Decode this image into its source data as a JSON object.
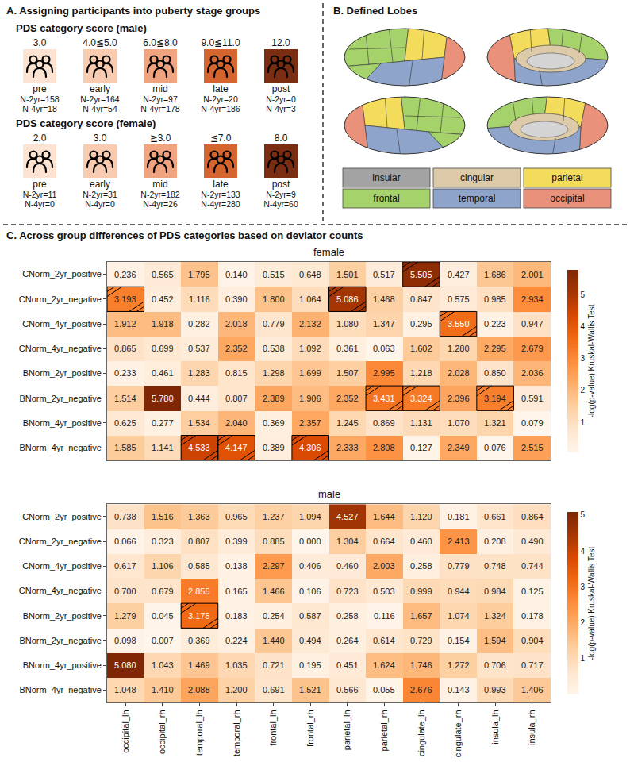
{
  "panels": {
    "A": {
      "title": "A. Assigning participants into puberty stage groups",
      "groups": [
        {
          "heading": "PDS category score (male)",
          "stages": [
            {
              "score": "3.0",
              "label": "pre",
              "counts": [
                "N-2yr=158",
                "N-4yr=18"
              ],
              "color": "#fde4d2"
            },
            {
              "score": "4.0≦5.0",
              "label": "early",
              "counts": [
                "N-2yr=164",
                "N-4yr=54"
              ],
              "color": "#f9cbb0"
            },
            {
              "score": "6.0≦8.0",
              "label": "mid",
              "counts": [
                "N-2yr=97",
                "N-4yr=178"
              ],
              "color": "#f0a37f"
            },
            {
              "score": "9.0≦11.0",
              "label": "late",
              "counts": [
                "N-2yr=20",
                "N-4yr=186"
              ],
              "color": "#d5652e"
            },
            {
              "score": "12.0",
              "label": "post",
              "counts": [
                "N-2yr=0",
                "N-4yr=3"
              ],
              "color": "#7a2d10"
            }
          ]
        },
        {
          "heading": "PDS category score (female)",
          "stages": [
            {
              "score": "2.0",
              "label": "pre",
              "counts": [
                "N-2yr=11",
                "N-4yr=0"
              ],
              "color": "#fde4d2"
            },
            {
              "score": "3.0",
              "label": "early",
              "counts": [
                "N-2yr=31",
                "N-4yr=0"
              ],
              "color": "#f9cbb0"
            },
            {
              "score": "≧3.0",
              "label": "mid",
              "counts": [
                "N-2yr=182",
                "N-4yr=26"
              ],
              "color": "#f0a37f"
            },
            {
              "score": "≦7.0",
              "label": "late",
              "counts": [
                "N-2yr=133",
                "N-4yr=280"
              ],
              "color": "#d5652e"
            },
            {
              "score": "8.0",
              "label": "post",
              "counts": [
                "N-2yr=9",
                "N-4yr=60"
              ],
              "color": "#7a2d10"
            }
          ]
        }
      ]
    },
    "B": {
      "title": "B. Defined Lobes",
      "lobes": [
        {
          "name": "insular",
          "color": "#a3a3a3"
        },
        {
          "name": "cingular",
          "color": "#dccaa8"
        },
        {
          "name": "parietal",
          "color": "#f3dc5c"
        },
        {
          "name": "frontal",
          "color": "#a6d26b"
        },
        {
          "name": "temporal",
          "color": "#8fa4cb"
        },
        {
          "name": "occipital",
          "color": "#e9917b"
        }
      ]
    },
    "C": {
      "title": "C. Across group differences of PDS categories based on deviator counts"
    }
  },
  "chart_data": [
    {
      "type": "heatmap",
      "title": "female",
      "x": [
        "occipital_lh",
        "occipital_rh",
        "temporal_lh",
        "temporal_rh",
        "frontal_lh",
        "frontal_rh",
        "parietal_lh",
        "parietal_rh",
        "cingulate_lh",
        "cingulate_rh",
        "insula_lh",
        "insula_rh"
      ],
      "y": [
        "CNorm_2yr_positive",
        "CNorm_2yr_negative",
        "CNorm_4yr_positive",
        "CNorm_4yr_negative",
        "BNorm_2yr_positive",
        "BNorm_2yr_negative",
        "BNorm_4yr_positive",
        "BNorm_4yr_negative"
      ],
      "cells": [
        [
          0.236,
          0.565,
          1.795,
          0.14,
          0.515,
          0.648,
          1.501,
          0.517,
          5.505,
          0.427,
          1.686,
          2.001
        ],
        [
          3.193,
          0.452,
          1.116,
          0.39,
          1.8,
          1.064,
          5.086,
          1.468,
          0.847,
          0.575,
          0.985,
          2.934
        ],
        [
          1.912,
          1.918,
          0.282,
          2.018,
          0.779,
          2.132,
          1.08,
          1.347,
          0.295,
          3.55,
          0.223,
          0.947
        ],
        [
          0.865,
          0.699,
          0.537,
          2.352,
          0.538,
          1.092,
          0.361,
          0.063,
          1.602,
          1.28,
          2.295,
          2.679
        ],
        [
          0.233,
          0.461,
          1.283,
          0.815,
          1.298,
          1.699,
          1.507,
          2.995,
          1.218,
          2.028,
          0.85,
          2.036
        ],
        [
          1.514,
          5.78,
          0.444,
          0.807,
          2.389,
          1.906,
          2.352,
          3.431,
          3.324,
          2.396,
          3.194,
          0.591
        ],
        [
          0.625,
          0.277,
          1.534,
          2.04,
          0.369,
          2.357,
          1.245,
          0.869,
          1.131,
          1.07,
          1.321,
          0.079
        ],
        [
          1.585,
          1.141,
          4.533,
          4.147,
          0.389,
          4.306,
          2.333,
          2.808,
          0.127,
          2.349,
          0.076,
          2.515
        ]
      ],
      "cell_labels": [
        [
          "0.236",
          "0.565",
          "1.795",
          "0.140",
          "0.515",
          "0.648",
          "1.501",
          "0.517",
          "5.505",
          "0.427",
          "1.686",
          "2.001"
        ],
        [
          "3.193",
          "0.452",
          "1.116",
          "0.390",
          "1.800",
          "1.064",
          "5.086",
          "1.468",
          "0.847",
          "0.575",
          "0.985",
          "2.934"
        ],
        [
          "1.912",
          "1.918",
          "0.282",
          "2.018",
          "0.779",
          "2.132",
          "1.080",
          "1.347",
          "0.295",
          "3.550",
          "0.223",
          "0.947"
        ],
        [
          "0.865",
          "0.699",
          "0.537",
          "2.352",
          "0.538",
          "1.092",
          "0.361",
          "0.063",
          "1.602",
          "1.280",
          "2.295",
          "2.679"
        ],
        [
          "0.233",
          "0.461",
          "1.283",
          "0.815",
          "1.298",
          "1.699",
          "1.507",
          "2.995",
          "1.218",
          "2.028",
          "0.850",
          "2.036"
        ],
        [
          "1.514",
          "5.780",
          "0.444",
          "0.807",
          "2.389",
          "1.906",
          "2.352",
          "3.431",
          "3.324",
          "2.396",
          "3.194",
          "0.591"
        ],
        [
          "0.625",
          "0.277",
          "1.534",
          "2.040",
          "0.369",
          "2.357",
          "1.245",
          "0.869",
          "1.131",
          "1.070",
          "1.321",
          "0.079"
        ],
        [
          "1.585",
          "1.141",
          "4.533",
          "4.147",
          "0.389",
          "4.306",
          "2.333",
          "2.808",
          "0.127",
          "2.349",
          "0.076",
          "2.515"
        ]
      ],
      "hatched_cells": [
        [
          0,
          8
        ],
        [
          1,
          0
        ],
        [
          1,
          6
        ],
        [
          2,
          9
        ],
        [
          5,
          7
        ],
        [
          5,
          8
        ],
        [
          5,
          10
        ],
        [
          7,
          2
        ],
        [
          7,
          3
        ],
        [
          7,
          5
        ]
      ],
      "colorbar": {
        "title": "-log(p-value) Kruskal-Wallis Test",
        "range": [
          0.063,
          5.78
        ],
        "ticks": [
          1,
          2,
          3,
          4,
          5
        ]
      },
      "data_labels": true,
      "tick_labels": "y"
    },
    {
      "type": "heatmap",
      "title": "male",
      "x": [
        "occipital_lh",
        "occipital_rh",
        "temporal_lh",
        "temporal_rh",
        "frontal_lh",
        "frontal_rh",
        "parietal_lh",
        "parietal_rh",
        "cingulate_lh",
        "cingulate_rh",
        "insula_lh",
        "insula_rh"
      ],
      "y": [
        "CNorm_2yr_positive",
        "CNorm_2yr_negative",
        "CNorm_4yr_positive",
        "CNorm_4yr_negative",
        "BNorm_2yr_positive",
        "BNorm_2yr_negative",
        "BNorm_4yr_positive",
        "BNorm_4yr_negative"
      ],
      "cells": [
        [
          0.738,
          1.516,
          1.363,
          0.965,
          1.237,
          1.094,
          4.527,
          1.644,
          1.12,
          0.181,
          0.661,
          0.864
        ],
        [
          0.066,
          0.323,
          0.807,
          0.399,
          0.885,
          0.0,
          1.304,
          0.664,
          0.46,
          2.413,
          0.208,
          0.49
        ],
        [
          0.617,
          1.106,
          0.585,
          0.138,
          2.297,
          0.406,
          0.46,
          2.003,
          0.258,
          0.779,
          0.748,
          0.744
        ],
        [
          0.7,
          0.679,
          2.855,
          0.165,
          1.466,
          0.106,
          0.723,
          0.503,
          0.999,
          0.944,
          0.984,
          0.125
        ],
        [
          1.279,
          0.045,
          3.175,
          0.183,
          0.254,
          0.587,
          0.258,
          0.116,
          1.657,
          1.074,
          1.324,
          0.178
        ],
        [
          0.098,
          0.007,
          0.369,
          0.224,
          1.44,
          0.494,
          0.264,
          0.614,
          0.729,
          0.154,
          1.594,
          0.904
        ],
        [
          5.08,
          1.043,
          1.469,
          1.035,
          0.721,
          0.195,
          0.451,
          1.624,
          1.746,
          1.272,
          0.706,
          0.717
        ],
        [
          1.048,
          1.41,
          2.088,
          1.2,
          0.691,
          1.521,
          0.566,
          0.055,
          2.676,
          0.143,
          0.993,
          1.406
        ]
      ],
      "cell_labels": [
        [
          "0.738",
          "1.516",
          "1.363",
          "0.965",
          "1.237",
          "1.094",
          "4.527",
          "1.644",
          "1.120",
          "0.181",
          "0.661",
          "0.864"
        ],
        [
          "0.066",
          "0.323",
          "0.807",
          "0.399",
          "0.885",
          "0.000",
          "1.304",
          "0.664",
          "0.460",
          "2.413",
          "0.208",
          "0.490"
        ],
        [
          "0.617",
          "1.106",
          "0.585",
          "0.138",
          "2.297",
          "0.406",
          "0.460",
          "2.003",
          "0.258",
          "0.779",
          "0.748",
          "0.744"
        ],
        [
          "0.700",
          "0.679",
          "2.855",
          "0.165",
          "1.466",
          "0.106",
          "0.723",
          "0.503",
          "0.999",
          "0.944",
          "0.984",
          "0.125"
        ],
        [
          "1.279",
          "0.045",
          "3.175",
          "0.183",
          "0.254",
          "0.587",
          "0.258",
          "0.116",
          "1.657",
          "1.074",
          "1.324",
          "0.178"
        ],
        [
          "0.098",
          "0.007",
          "0.369",
          "0.224",
          "1.440",
          "0.494",
          "0.264",
          "0.614",
          "0.729",
          "0.154",
          "1.594",
          "0.904"
        ],
        [
          "5.080",
          "1.043",
          "1.469",
          "1.035",
          "0.721",
          "0.195",
          "0.451",
          "1.624",
          "1.746",
          "1.272",
          "0.706",
          "0.717"
        ],
        [
          "1.048",
          "1.410",
          "2.088",
          "1.200",
          "0.691",
          "1.521",
          "0.566",
          "0.055",
          "2.676",
          "0.143",
          "0.993",
          "1.406"
        ]
      ],
      "hatched_cells": [
        [
          4,
          2
        ]
      ],
      "colorbar": {
        "title": "-log(p-value) Kruskal-Wallis Test",
        "range": [
          0.0,
          5.08
        ],
        "ticks": [
          1,
          2,
          3,
          4,
          5
        ]
      },
      "data_labels": true
    }
  ]
}
